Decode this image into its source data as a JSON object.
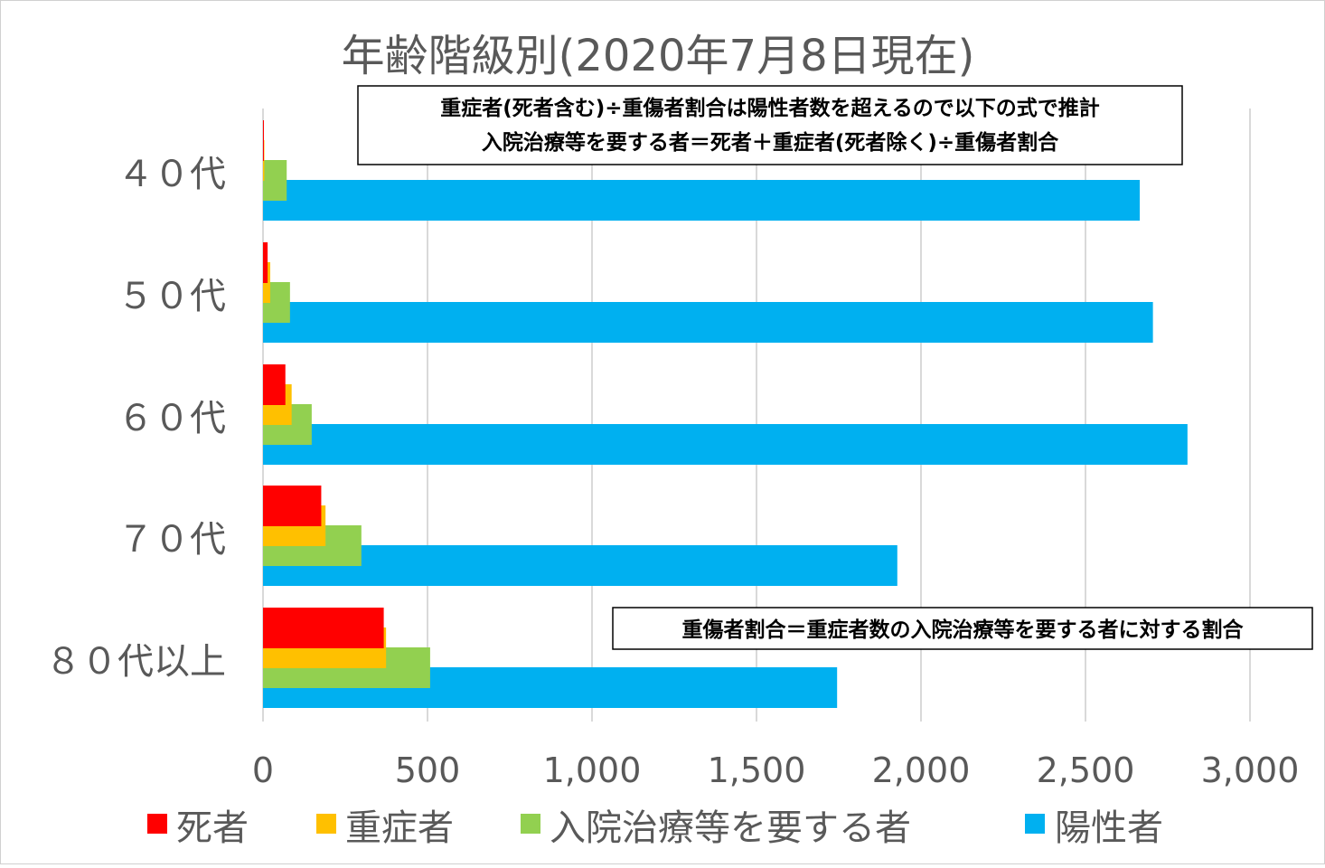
{
  "chart_data": {
    "type": "bar",
    "orientation": "horizontal",
    "title": "年齢階級別(2020年7月8日現在)",
    "categories": [
      "４０代",
      "５０代",
      "６０代",
      "７０代",
      "８０代以上"
    ],
    "series": [
      {
        "name": "死者",
        "color": "#ff0000",
        "values": [
          2,
          14,
          68,
          177,
          367
        ]
      },
      {
        "name": "重症者",
        "color": "#ffc000",
        "values": [
          4,
          22,
          87,
          190,
          374
        ]
      },
      {
        "name": "入院治療等を要する者",
        "color": "#92d050",
        "values": [
          72,
          82,
          148,
          299,
          508
        ]
      },
      {
        "name": "陽性者",
        "color": "#00b0f0",
        "values": [
          2665,
          2705,
          2810,
          1928,
          1745
        ]
      }
    ],
    "xlim": [
      0,
      3000
    ],
    "xticks": [
      0,
      500,
      1000,
      1500,
      2000,
      2500,
      3000
    ],
    "xtick_labels": [
      "0",
      "500",
      "1,000",
      "1,500",
      "2,000",
      "2,500",
      "3,000"
    ],
    "grid": true,
    "legend": "bottom",
    "annotations": [
      {
        "lines": [
          "重症者(死者含む)÷重傷者割合は陽性者数を超えるので以下の式で推計",
          "入院治療等を要する者＝死者＋重症者(死者除く)÷重傷者割合"
        ]
      },
      {
        "lines": [
          "重傷者割合＝重症者数の入院治療等を要する者に対する割合"
        ]
      }
    ]
  }
}
